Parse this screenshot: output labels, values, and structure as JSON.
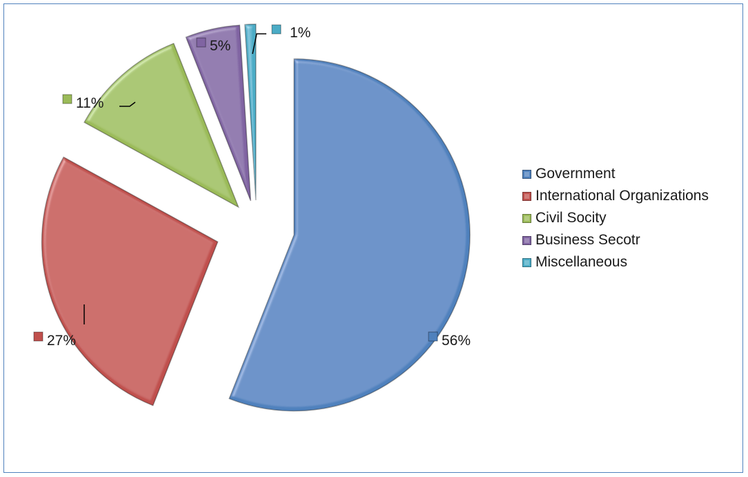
{
  "chart_data": {
    "type": "pie",
    "title": "",
    "categories": [
      "Government",
      "International Organizations",
      "Civil Socity",
      "Business Secotr",
      "Miscellaneous"
    ],
    "values": [
      56,
      27,
      11,
      5,
      1
    ],
    "labels": [
      "56%",
      "27%",
      "11%",
      "5%",
      "1%"
    ],
    "colors": [
      "#4f81bd",
      "#c0504d",
      "#9bbb59",
      "#8064a2",
      "#4bacc6"
    ],
    "exploded": true,
    "legend": "right"
  }
}
